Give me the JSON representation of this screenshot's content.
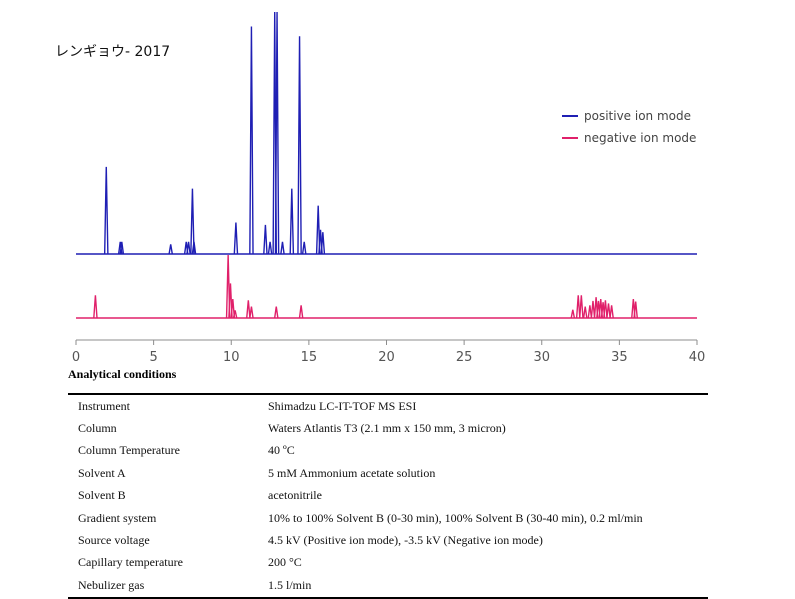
{
  "chart_data": {
    "type": "line",
    "title": "レンギョウ- 2017",
    "xlabel": "",
    "ylabel": "",
    "xlim": [
      0,
      40
    ],
    "x_ticks": [
      "0",
      "5",
      "10",
      "15",
      "20",
      "25",
      "30",
      "35",
      "40"
    ],
    "legend_position": "top-right",
    "series": [
      {
        "name": "positive ion mode",
        "color": "#1f1fb4",
        "peaks": [
          {
            "x": 1.95,
            "h": 0.36
          },
          {
            "x": 2.85,
            "h": 0.05
          },
          {
            "x": 2.95,
            "h": 0.05
          },
          {
            "x": 6.1,
            "h": 0.04
          },
          {
            "x": 7.1,
            "h": 0.05
          },
          {
            "x": 7.25,
            "h": 0.05
          },
          {
            "x": 7.5,
            "h": 0.27
          },
          {
            "x": 7.6,
            "h": 0.05
          },
          {
            "x": 10.3,
            "h": 0.13
          },
          {
            "x": 11.3,
            "h": 0.94
          },
          {
            "x": 12.2,
            "h": 0.12
          },
          {
            "x": 12.5,
            "h": 0.05
          },
          {
            "x": 12.8,
            "h": 1.0
          },
          {
            "x": 12.95,
            "h": 1.0
          },
          {
            "x": 13.3,
            "h": 0.05
          },
          {
            "x": 13.9,
            "h": 0.27
          },
          {
            "x": 14.4,
            "h": 0.9
          },
          {
            "x": 14.7,
            "h": 0.05
          },
          {
            "x": 15.6,
            "h": 0.2
          },
          {
            "x": 15.75,
            "h": 0.1
          },
          {
            "x": 15.9,
            "h": 0.09
          }
        ]
      },
      {
        "name": "negative ion mode",
        "color": "#e0206a",
        "peaks": [
          {
            "x": 1.25,
            "h": 0.36
          },
          {
            "x": 9.8,
            "h": 1.0
          },
          {
            "x": 9.95,
            "h": 0.55
          },
          {
            "x": 10.1,
            "h": 0.3
          },
          {
            "x": 10.25,
            "h": 0.12
          },
          {
            "x": 11.1,
            "h": 0.28
          },
          {
            "x": 11.3,
            "h": 0.18
          },
          {
            "x": 12.9,
            "h": 0.18
          },
          {
            "x": 14.5,
            "h": 0.2
          },
          {
            "x": 32.0,
            "h": 0.13
          },
          {
            "x": 32.35,
            "h": 0.36
          },
          {
            "x": 32.55,
            "h": 0.36
          },
          {
            "x": 32.8,
            "h": 0.18
          },
          {
            "x": 33.1,
            "h": 0.2
          },
          {
            "x": 33.3,
            "h": 0.27
          },
          {
            "x": 33.5,
            "h": 0.33
          },
          {
            "x": 33.65,
            "h": 0.27
          },
          {
            "x": 33.8,
            "h": 0.3
          },
          {
            "x": 33.95,
            "h": 0.25
          },
          {
            "x": 34.1,
            "h": 0.28
          },
          {
            "x": 34.3,
            "h": 0.23
          },
          {
            "x": 34.5,
            "h": 0.2
          },
          {
            "x": 35.9,
            "h": 0.3
          },
          {
            "x": 36.05,
            "h": 0.26
          }
        ]
      }
    ]
  },
  "conditions": {
    "heading": "Analytical conditions",
    "rows": [
      {
        "param": "Instrument",
        "value": "Shimadzu LC-IT-TOF MS ESI"
      },
      {
        "param": "Column",
        "value": "Waters Atlantis T3 (2.1 mm x 150 mm, 3 micron)"
      },
      {
        "param": "Column Temperature",
        "value": "40 ºC"
      },
      {
        "param": "Solvent A",
        "value": "5 mM Ammonium acetate solution"
      },
      {
        "param": "Solvent B",
        "value": "acetonitrile"
      },
      {
        "param": "Gradient system",
        "value": "10% to 100% Solvent B (0-30 min), 100% Solvent B (30-40 min), 0.2 ml/min"
      },
      {
        "param": "Source voltage",
        "value": "4.5 kV (Positive ion mode), -3.5 kV (Negative ion mode)"
      },
      {
        "param": "Capillary temperature",
        "value": "200 °C"
      },
      {
        "param": "Nebulizer gas",
        "value": "1.5 l/min"
      }
    ]
  }
}
